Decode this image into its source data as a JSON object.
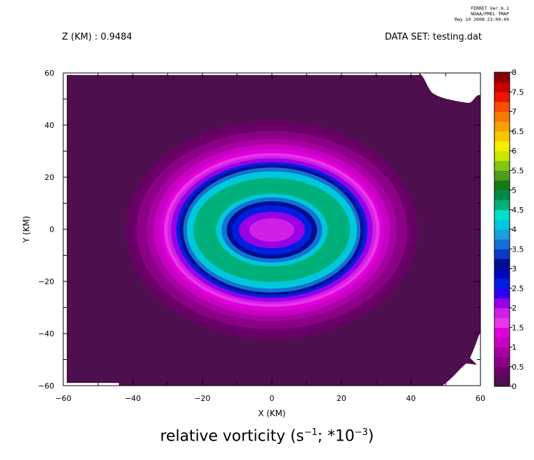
{
  "stamp": {
    "line1": "FERRET  Ver.6.1",
    "line2": "NOAA/PMEL TMAP",
    "line3": "May 10 2008 23:00:49"
  },
  "header": {
    "z_label": "Z (KM) : 0.9484",
    "dataset_label": "DATA SET: testing.dat"
  },
  "chart_data": {
    "type": "heatmap",
    "title_main": "relative vorticity (s",
    "title_exp1": "−1",
    "title_mid": "; *10",
    "title_exp2": "−3",
    "title_end": ")",
    "xlabel": "X (KM)",
    "ylabel": "Y (KM)",
    "xlim": [
      -60,
      60
    ],
    "ylim": [
      -60,
      60
    ],
    "x_ticks": [
      -60,
      -40,
      -20,
      0,
      20,
      40,
      60
    ],
    "x_tick_labels": [
      "−60",
      "−40",
      "−20",
      "0",
      "20",
      "40",
      "60"
    ],
    "y_ticks": [
      -60,
      -40,
      -20,
      0,
      20,
      40,
      60
    ],
    "y_tick_labels": [
      "−60",
      "−40",
      "−20",
      "0",
      "20",
      "40",
      "60"
    ],
    "grid": false,
    "center": [
      0,
      0
    ],
    "colorbar": {
      "levels": [
        0,
        0.25,
        0.5,
        0.75,
        1,
        1.25,
        1.5,
        1.75,
        2,
        2.25,
        2.5,
        2.75,
        3,
        3.25,
        3.5,
        3.75,
        4,
        4.25,
        4.5,
        4.75,
        5,
        5.25,
        5.5,
        5.75,
        6,
        6.25,
        6.5,
        6.75,
        7,
        7.25,
        7.5,
        7.75,
        8
      ],
      "labels": [
        "0",
        "0.5",
        "1",
        "1.5",
        "2",
        "2.5",
        "3",
        "3.5",
        "4",
        "4.5",
        "5",
        "5.5",
        "6",
        "6.5",
        "7",
        "7.5",
        "8"
      ],
      "colors": [
        "#4d0f4d",
        "#690066",
        "#8c0087",
        "#a700a3",
        "#c700c4",
        "#e100dc",
        "#ea35ea",
        "#d21fe6",
        "#9800e6",
        "#2d00f2",
        "#001ee0",
        "#0006b8",
        "#000e8f",
        "#0a3ac8",
        "#1371d4",
        "#1aa0de",
        "#00c8dc",
        "#00e0c8",
        "#00b07a",
        "#008a45",
        "#157a15",
        "#4c9e1a",
        "#86c414",
        "#c8e600",
        "#f5ee00",
        "#f5c800",
        "#f7a000",
        "#f77a00",
        "#f74e00",
        "#ee1600",
        "#c80000",
        "#8a0000"
      ],
      "ticks": [
        0,
        0.5,
        1,
        1.5,
        2,
        2.5,
        3,
        3.5,
        4,
        4.5,
        5,
        5.5,
        6,
        6.5,
        7,
        7.5,
        8
      ]
    },
    "rings": [
      {
        "level": 0.25,
        "rx": 42,
        "ry": 42
      },
      {
        "level": 0.5,
        "rx": 39,
        "ry": 38
      },
      {
        "level": 0.75,
        "rx": 36,
        "ry": 35
      },
      {
        "level": 1,
        "rx": 34,
        "ry": 33
      },
      {
        "level": 1.25,
        "rx": 32,
        "ry": 31
      },
      {
        "level": 1.5,
        "rx": 31,
        "ry": 29.5
      },
      {
        "level": 1.75,
        "rx": 30,
        "ry": 28.5
      },
      {
        "level": 2,
        "rx": 29,
        "ry": 27.5
      },
      {
        "level": 2.5,
        "rx": 27.5,
        "ry": 26
      },
      {
        "level": 3,
        "rx": 26.5,
        "ry": 25
      },
      {
        "level": 3.5,
        "rx": 25.5,
        "ry": 24
      },
      {
        "level": 4,
        "rx": 24.5,
        "ry": 22.5
      },
      {
        "level": 4.5,
        "rx": 22.5,
        "ry": 20
      },
      {
        "level": 4,
        "rx": 16,
        "ry": 14
      },
      {
        "level": 3.5,
        "rx": 14.5,
        "ry": 12.5
      },
      {
        "level": 3,
        "rx": 13,
        "ry": 11
      },
      {
        "level": 2.5,
        "rx": 11.5,
        "ry": 9.5
      },
      {
        "level": 2,
        "rx": 9.5,
        "ry": 7
      },
      {
        "level": 1.75,
        "rx": 6.5,
        "ry": 4.5
      }
    ]
  }
}
